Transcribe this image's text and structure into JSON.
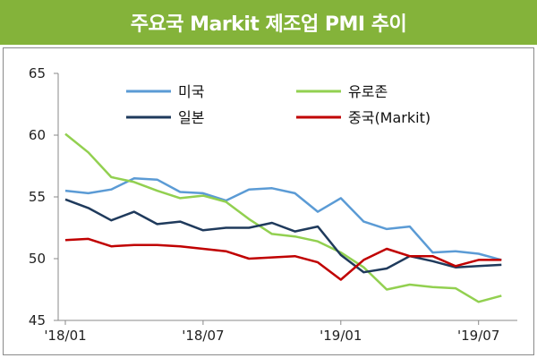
{
  "chart_data": {
    "type": "line",
    "title": "주요국 Markit 제조업 PMI 추이",
    "x": [
      "'18/01",
      "'18/02",
      "'18/03",
      "'18/04",
      "'18/05",
      "'18/06",
      "'18/07",
      "'18/08",
      "'18/09",
      "'18/10",
      "'18/11",
      "'18/12",
      "'19/01",
      "'19/02",
      "'19/03",
      "'19/04",
      "'19/05",
      "'19/06",
      "'19/07",
      "'19/08"
    ],
    "xticks": [
      "'18/01",
      "'18/07",
      "'19/01",
      "'19/07"
    ],
    "yticks": [
      45,
      50,
      55,
      60,
      65
    ],
    "ylim": [
      45,
      65
    ],
    "grid": false,
    "legend_position": "top",
    "series": [
      {
        "name": "미국",
        "color": "#5b9bd5",
        "values": [
          55.5,
          55.3,
          55.6,
          56.5,
          56.4,
          55.4,
          55.3,
          54.7,
          55.6,
          55.7,
          55.3,
          53.8,
          54.9,
          53.0,
          52.4,
          52.6,
          50.5,
          50.6,
          50.4,
          49.9
        ]
      },
      {
        "name": "유로존",
        "color": "#92d050",
        "values": [
          60.1,
          58.6,
          56.6,
          56.2,
          55.5,
          54.9,
          55.1,
          54.6,
          53.2,
          52.0,
          51.8,
          51.4,
          50.5,
          49.3,
          47.5,
          47.9,
          47.7,
          47.6,
          46.5,
          47.0
        ]
      },
      {
        "name": "일본",
        "color": "#1f3a5c",
        "values": [
          54.8,
          54.1,
          53.1,
          53.8,
          52.8,
          53.0,
          52.3,
          52.5,
          52.5,
          52.9,
          52.2,
          52.6,
          50.3,
          48.9,
          49.2,
          50.2,
          49.8,
          49.3,
          49.4,
          49.5
        ]
      },
      {
        "name": "중국(Markit)",
        "color": "#c00000",
        "values": [
          51.5,
          51.6,
          51.0,
          51.1,
          51.1,
          51.0,
          50.8,
          50.6,
          50.0,
          50.1,
          50.2,
          49.7,
          48.3,
          49.9,
          50.8,
          50.2,
          50.2,
          49.4,
          49.9,
          49.9
        ]
      }
    ]
  }
}
